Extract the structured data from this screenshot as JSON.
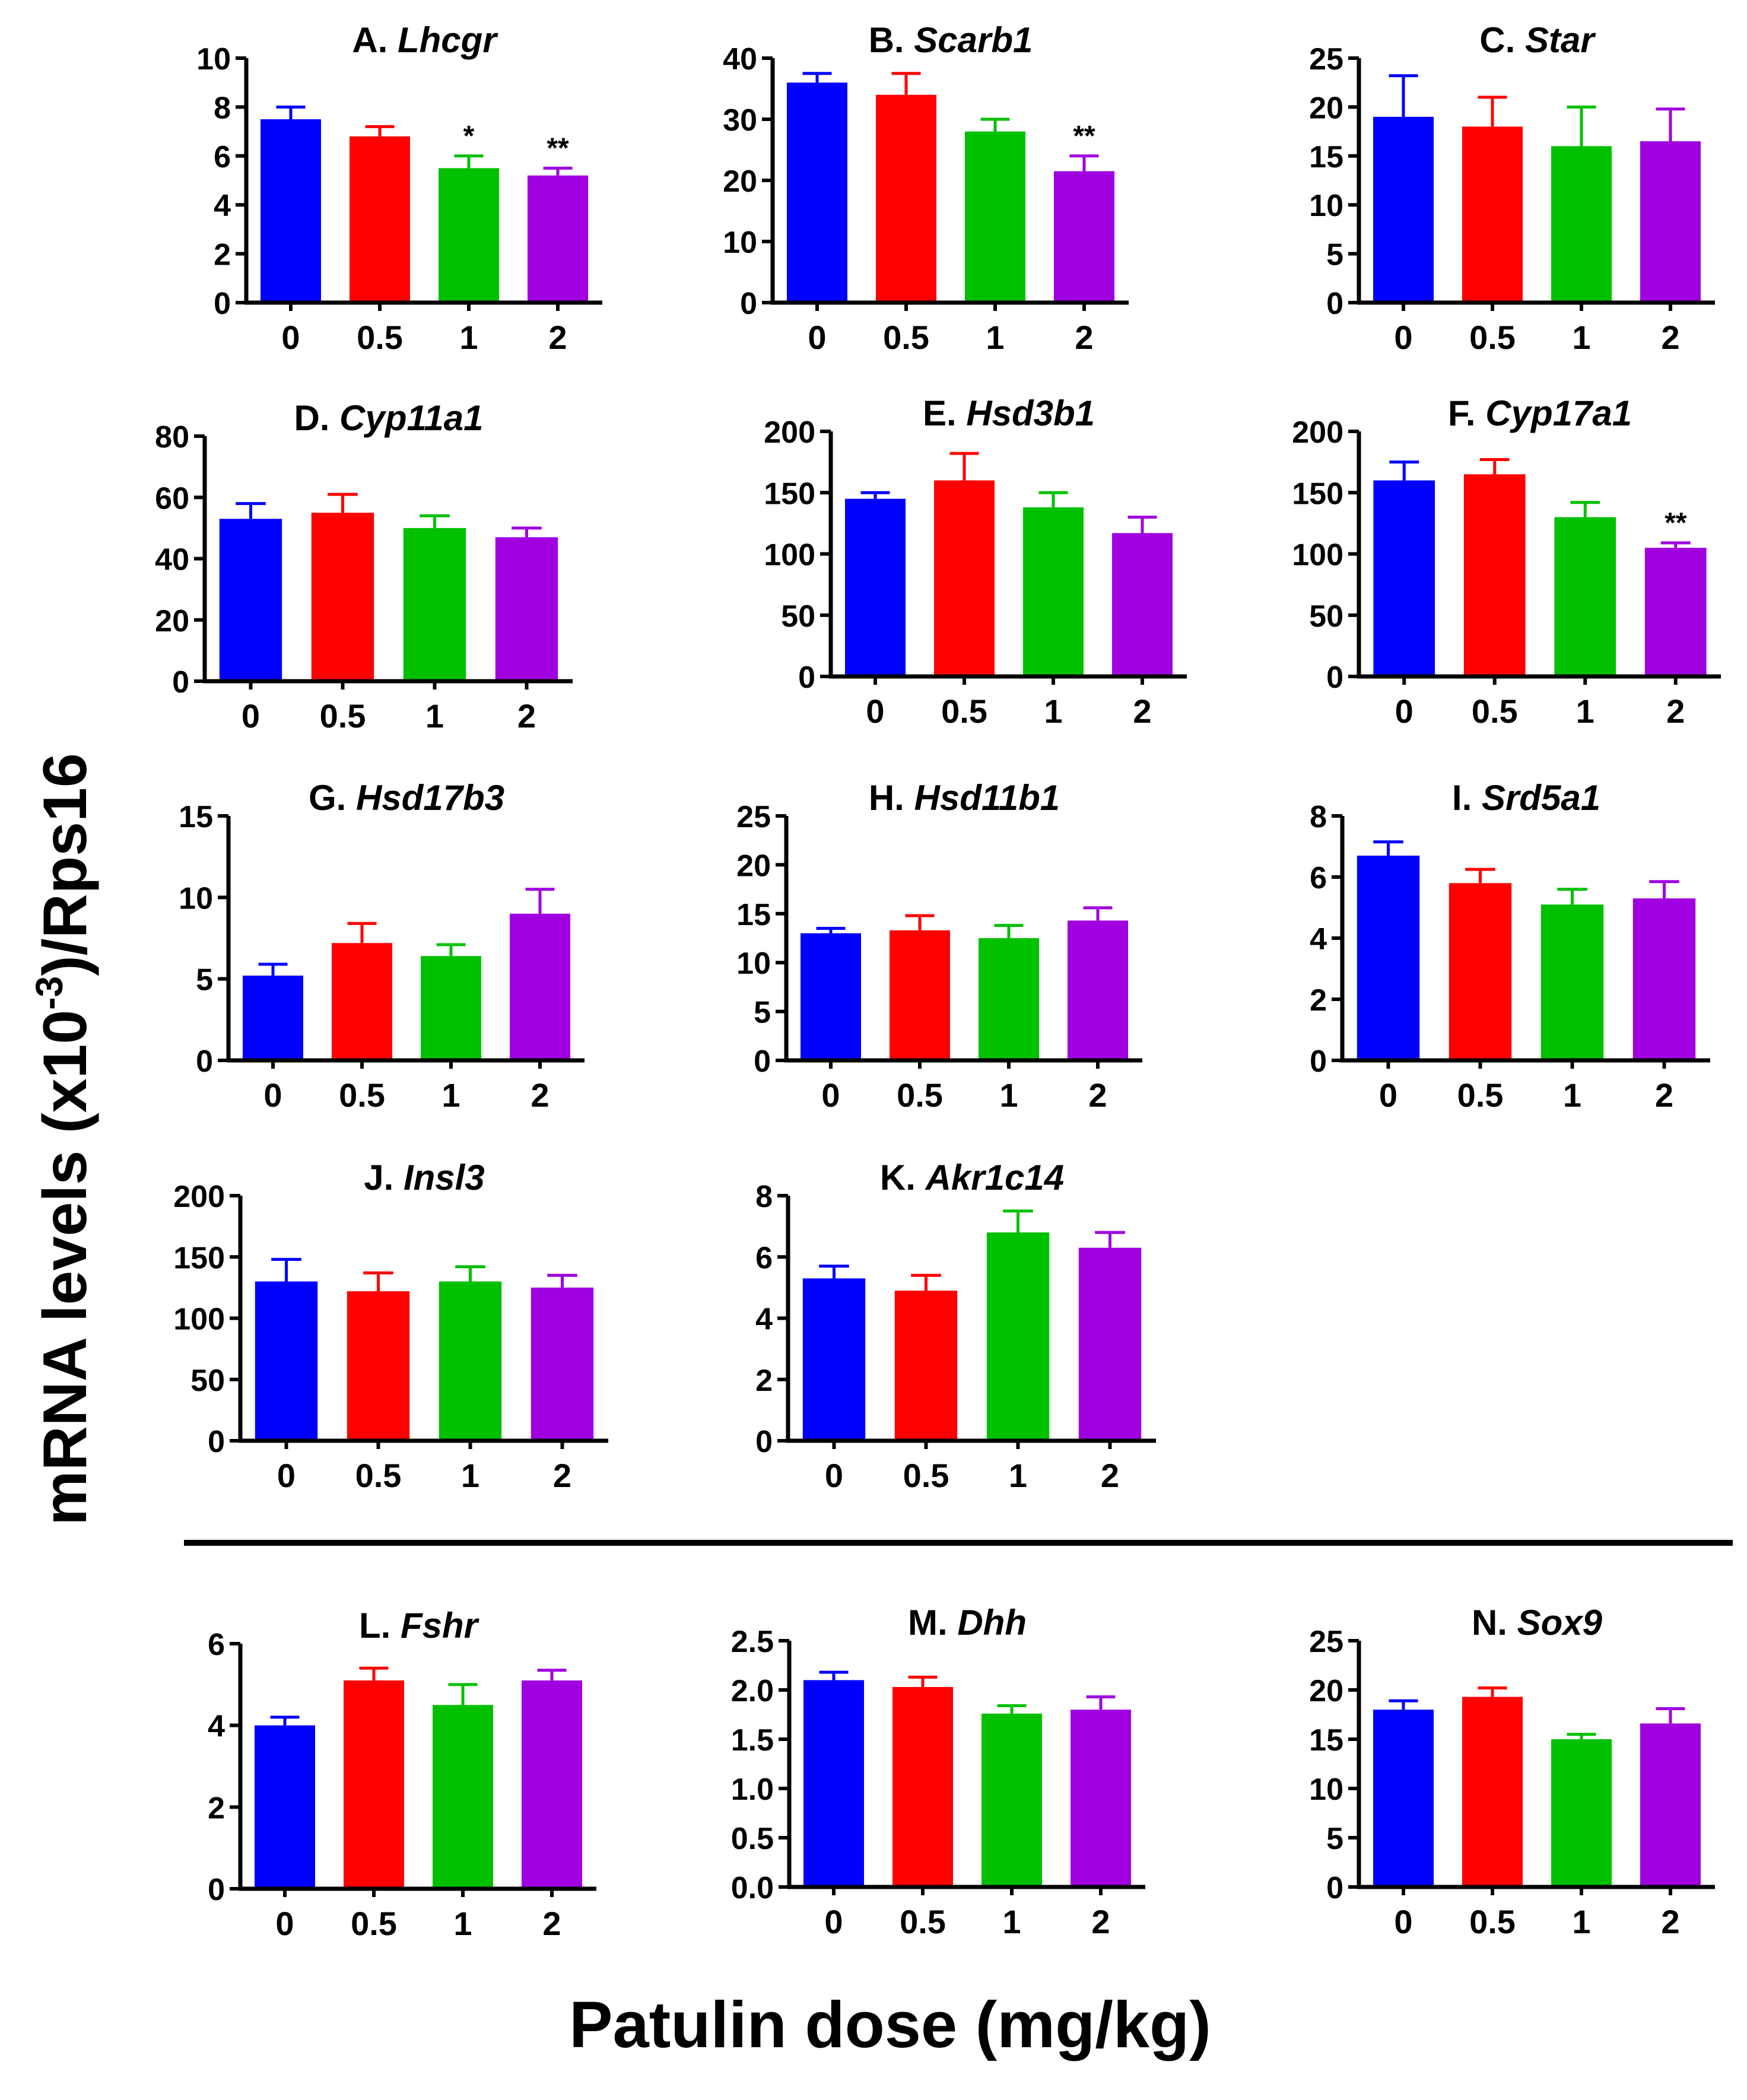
{
  "figure": {
    "y_axis_title": "mRNA levels (x10⁻³)/Rps16",
    "y_axis_title_main": "mRNA levels (x10",
    "y_axis_title_sup": "-3",
    "y_axis_title_tail": ")/Rps16",
    "x_axis_title": "Patulin dose (mg/kg)"
  },
  "colors": {
    "dose_0": "#0000ff",
    "dose_0.5": "#ff0000",
    "dose_1": "#00c000",
    "dose_2": "#a000e0",
    "axis": "#000000"
  },
  "chart_data": [
    {
      "type": "bar",
      "panel": "A.",
      "gene": "Lhcgr",
      "categories": [
        "0",
        "0.5",
        "1",
        "2"
      ],
      "values": [
        7.5,
        6.8,
        5.5,
        5.2
      ],
      "errors": [
        0.5,
        0.4,
        0.5,
        0.3
      ],
      "significance": [
        "",
        "",
        "*",
        "**"
      ],
      "yticks": [
        "0",
        "2",
        "4",
        "6",
        "8",
        "10"
      ],
      "ylim": [
        0,
        10
      ],
      "xlabel": "Patulin dose (mg/kg)",
      "ylabel": "mRNA levels (x10^-3)/Rps16"
    },
    {
      "type": "bar",
      "panel": "B.",
      "gene": "Scarb1",
      "categories": [
        "0",
        "0.5",
        "1",
        "2"
      ],
      "values": [
        36,
        34,
        28,
        21.5
      ],
      "errors": [
        1.5,
        3.5,
        2,
        2.5
      ],
      "significance": [
        "",
        "",
        "",
        "**"
      ],
      "yticks": [
        "0",
        "10",
        "20",
        "30",
        "40"
      ],
      "ylim": [
        0,
        40
      ],
      "xlabel": "Patulin dose (mg/kg)",
      "ylabel": "mRNA levels (x10^-3)/Rps16"
    },
    {
      "type": "bar",
      "panel": "C.",
      "gene": "Star",
      "categories": [
        "0",
        "0.5",
        "1",
        "2"
      ],
      "values": [
        19,
        18,
        16,
        16.5
      ],
      "errors": [
        4.2,
        3,
        4,
        3.3
      ],
      "significance": [
        "",
        "",
        "",
        ""
      ],
      "yticks": [
        "0",
        "5",
        "10",
        "15",
        "20",
        "25"
      ],
      "ylim": [
        0,
        25
      ],
      "xlabel": "Patulin dose (mg/kg)",
      "ylabel": "mRNA levels (x10^-3)/Rps16"
    },
    {
      "type": "bar",
      "panel": "D.",
      "gene": "Cyp11a1",
      "categories": [
        "0",
        "0.5",
        "1",
        "2"
      ],
      "values": [
        53,
        55,
        50,
        47
      ],
      "errors": [
        5,
        6,
        4,
        3
      ],
      "significance": [
        "",
        "",
        "",
        ""
      ],
      "yticks": [
        "0",
        "20",
        "40",
        "60",
        "80"
      ],
      "ylim": [
        0,
        80
      ],
      "xlabel": "Patulin dose (mg/kg)",
      "ylabel": "mRNA levels (x10^-3)/Rps16"
    },
    {
      "type": "bar",
      "panel": "E.",
      "gene": "Hsd3b1",
      "categories": [
        "0",
        "0.5",
        "1",
        "2"
      ],
      "values": [
        145,
        160,
        138,
        117
      ],
      "errors": [
        5,
        22,
        12,
        13
      ],
      "significance": [
        "",
        "",
        "",
        ""
      ],
      "yticks": [
        "0",
        "50",
        "100",
        "150",
        "200"
      ],
      "ylim": [
        0,
        200
      ],
      "xlabel": "Patulin dose (mg/kg)",
      "ylabel": "mRNA levels (x10^-3)/Rps16"
    },
    {
      "type": "bar",
      "panel": "F.",
      "gene": "Cyp17a1",
      "categories": [
        "0",
        "0.5",
        "1",
        "2"
      ],
      "values": [
        160,
        165,
        130,
        105
      ],
      "errors": [
        15,
        12,
        12,
        4
      ],
      "significance": [
        "",
        "",
        "",
        "**"
      ],
      "yticks": [
        "0",
        "50",
        "100",
        "150",
        "200"
      ],
      "ylim": [
        0,
        200
      ],
      "xlabel": "Patulin dose (mg/kg)",
      "ylabel": "mRNA levels (x10^-3)/Rps16"
    },
    {
      "type": "bar",
      "panel": "G.",
      "gene": "Hsd17b3",
      "categories": [
        "0",
        "0.5",
        "1",
        "2"
      ],
      "values": [
        5.2,
        7.2,
        6.4,
        9
      ],
      "errors": [
        0.7,
        1.2,
        0.7,
        1.5
      ],
      "significance": [
        "",
        "",
        "",
        ""
      ],
      "yticks": [
        "0",
        "5",
        "10",
        "15"
      ],
      "ylim": [
        0,
        15
      ],
      "xlabel": "Patulin dose (mg/kg)",
      "ylabel": "mRNA levels (x10^-3)/Rps16"
    },
    {
      "type": "bar",
      "panel": "H.",
      "gene": "Hsd11b1",
      "categories": [
        "0",
        "0.5",
        "1",
        "2"
      ],
      "values": [
        13,
        13.3,
        12.5,
        14.3
      ],
      "errors": [
        0.5,
        1.5,
        1.3,
        1.3
      ],
      "significance": [
        "",
        "",
        "",
        ""
      ],
      "yticks": [
        "0",
        "5",
        "10",
        "15",
        "20",
        "25"
      ],
      "ylim": [
        0,
        25
      ],
      "xlabel": "Patulin dose (mg/kg)",
      "ylabel": "mRNA levels (x10^-3)/Rps16"
    },
    {
      "type": "bar",
      "panel": "I.",
      "gene": "Srd5a1",
      "categories": [
        "0",
        "0.5",
        "1",
        "2"
      ],
      "values": [
        6.7,
        5.8,
        5.1,
        5.3
      ],
      "errors": [
        0.45,
        0.45,
        0.5,
        0.55
      ],
      "significance": [
        "",
        "",
        "",
        ""
      ],
      "yticks": [
        "0",
        "2",
        "4",
        "6",
        "8"
      ],
      "ylim": [
        0,
        8
      ],
      "xlabel": "Patulin dose (mg/kg)",
      "ylabel": "mRNA levels (x10^-3)/Rps16"
    },
    {
      "type": "bar",
      "panel": "J.",
      "gene": "Insl3",
      "categories": [
        "0",
        "0.5",
        "1",
        "2"
      ],
      "values": [
        130,
        122,
        130,
        125
      ],
      "errors": [
        18,
        15,
        12,
        10
      ],
      "significance": [
        "",
        "",
        "",
        ""
      ],
      "yticks": [
        "0",
        "50",
        "100",
        "150",
        "200"
      ],
      "ylim": [
        0,
        200
      ],
      "xlabel": "Patulin dose (mg/kg)",
      "ylabel": "mRNA levels (x10^-3)/Rps16"
    },
    {
      "type": "bar",
      "panel": "K.",
      "gene": "Akr1c14",
      "categories": [
        "0",
        "0.5",
        "1",
        "2"
      ],
      "values": [
        5.3,
        4.9,
        6.8,
        6.3
      ],
      "errors": [
        0.4,
        0.5,
        0.7,
        0.5
      ],
      "significance": [
        "",
        "",
        "",
        ""
      ],
      "yticks": [
        "0",
        "2",
        "4",
        "6",
        "8"
      ],
      "ylim": [
        0,
        8
      ],
      "xlabel": "Patulin dose (mg/kg)",
      "ylabel": "mRNA levels (x10^-3)/Rps16"
    },
    {
      "type": "bar",
      "panel": "L.",
      "gene": "Fshr",
      "categories": [
        "0",
        "0.5",
        "1",
        "2"
      ],
      "values": [
        4,
        5.1,
        4.5,
        5.1
      ],
      "errors": [
        0.2,
        0.3,
        0.5,
        0.25
      ],
      "significance": [
        "",
        "",
        "",
        ""
      ],
      "yticks": [
        "0",
        "2",
        "4",
        "6"
      ],
      "ylim": [
        0,
        6
      ],
      "xlabel": "Patulin dose (mg/kg)",
      "ylabel": "mRNA levels (x10^-3)/Rps16"
    },
    {
      "type": "bar",
      "panel": "M.",
      "gene": "Dhh",
      "categories": [
        "0",
        "0.5",
        "1",
        "2"
      ],
      "values": [
        2.1,
        2.03,
        1.76,
        1.8
      ],
      "errors": [
        0.08,
        0.1,
        0.08,
        0.13
      ],
      "significance": [
        "",
        "",
        "",
        ""
      ],
      "yticks": [
        "0.0",
        "0.5",
        "1.0",
        "1.5",
        "2.0",
        "2.5"
      ],
      "ylim": [
        0,
        2.5
      ],
      "xlabel": "Patulin dose (mg/kg)",
      "ylabel": "mRNA levels (x10^-3)/Rps16"
    },
    {
      "type": "bar",
      "panel": "N.",
      "gene": "Sox9",
      "categories": [
        "0",
        "0.5",
        "1",
        "2"
      ],
      "values": [
        18,
        19.3,
        15,
        16.6
      ],
      "errors": [
        0.9,
        0.9,
        0.5,
        1.5
      ],
      "significance": [
        "",
        "",
        "",
        ""
      ],
      "yticks": [
        "0",
        "5",
        "10",
        "15",
        "20",
        "25"
      ],
      "ylim": [
        0,
        25
      ],
      "xlabel": "Patulin dose (mg/kg)",
      "ylabel": "mRNA levels (x10^-3)/Rps16"
    }
  ]
}
